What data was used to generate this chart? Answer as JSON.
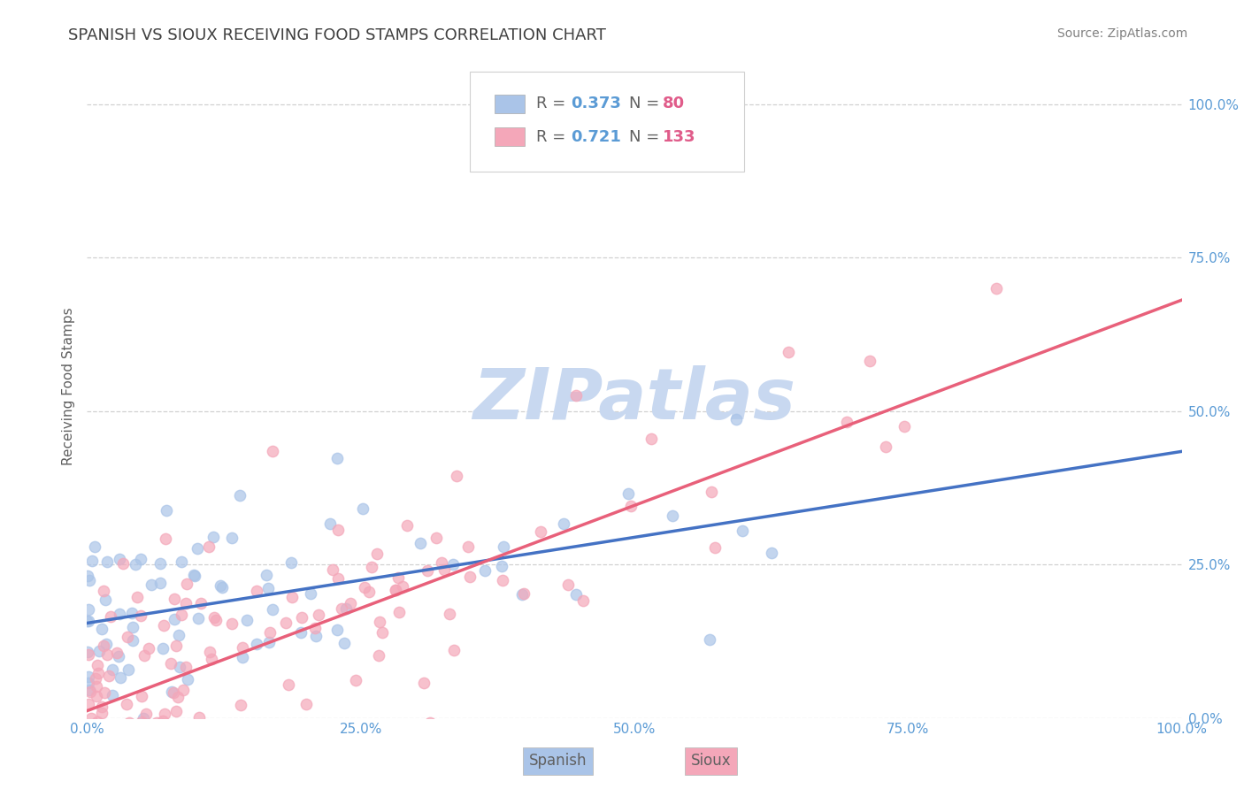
{
  "title": "SPANISH VS SIOUX RECEIVING FOOD STAMPS CORRELATION CHART",
  "source_text": "Source: ZipAtlas.com",
  "ylabel": "Receiving Food Stamps",
  "xlim": [
    0.0,
    1.0
  ],
  "ylim": [
    0.0,
    1.08
  ],
  "xticks": [
    0.0,
    0.25,
    0.5,
    0.75,
    1.0
  ],
  "yticks": [
    0.0,
    0.25,
    0.5,
    0.75,
    1.0
  ],
  "xtick_labels": [
    "0.0%",
    "25.0%",
    "50.0%",
    "75.0%",
    "100.0%"
  ],
  "ytick_labels": [
    "0.0%",
    "25.0%",
    "50.0%",
    "75.0%",
    "100.0%"
  ],
  "spanish_color": "#aac4e8",
  "sioux_color": "#f4a7b9",
  "spanish_line_color": "#4472c4",
  "sioux_line_color": "#e8607a",
  "legend_r_color": "#5b9bd5",
  "legend_n_color": "#e05c8a",
  "spanish_R": 0.373,
  "spanish_N": 80,
  "sioux_R": 0.721,
  "sioux_N": 133,
  "watermark": "ZIPatlas",
  "watermark_color": "#c8d8f0",
  "background_color": "#ffffff",
  "grid_color": "#cccccc",
  "title_color": "#404040",
  "axis_label_color": "#606060",
  "tick_color": "#5b9bd5",
  "bottom_legend_spanish": "Spanish",
  "bottom_legend_sioux": "Sioux"
}
